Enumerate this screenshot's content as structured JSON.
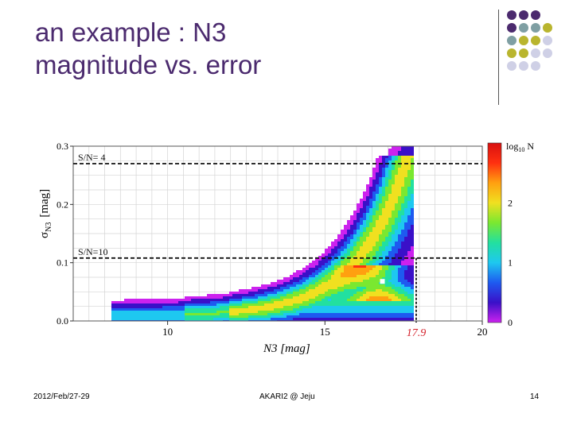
{
  "slide": {
    "title_line1": "an example : N3",
    "title_line2": "magnitude vs. error",
    "footer_left": "2012/Feb/27-29",
    "footer_center": "AKARI2 @ Jeju",
    "footer_right": "14"
  },
  "theme": {
    "title_color": "#4b2a6e",
    "dot_colors": {
      "purple": "#4b2a6e",
      "teal": "#7f9fa3",
      "olive": "#b9b52e",
      "lavender": "#cfd0e6"
    }
  },
  "chart_data": {
    "type": "heatmap",
    "title": "",
    "xlabel": "N3 [mag]",
    "ylabel_main": "σ",
    "ylabel_sub": "N3",
    "ylabel_unit": "[mag]",
    "xlim": [
      7,
      20
    ],
    "ylim": [
      0.0,
      0.3
    ],
    "x_ticks": [
      10,
      15,
      20
    ],
    "x_tick_labels": [
      "10",
      "15",
      "20"
    ],
    "y_ticks": [
      0.0,
      0.1,
      0.2,
      0.3
    ],
    "y_tick_labels": [
      "0.0",
      "0.1",
      "0.2",
      "0.3"
    ],
    "grid": true,
    "reference_lines": [
      {
        "y": 0.27,
        "label": "S/N= 4",
        "style": "dashed"
      },
      {
        "y": 0.108,
        "label": "S/N=10",
        "style": "dashed"
      }
    ],
    "limit_marker": {
      "x": 17.9,
      "label": "17.9",
      "color": "#d4202a"
    },
    "colorbar": {
      "label_main": "log",
      "label_sub": "10",
      "label_tail": " N",
      "range": [
        0,
        3
      ],
      "ticks": [
        0,
        1,
        2
      ],
      "tick_labels": [
        "0",
        "1",
        "2"
      ],
      "colors": [
        "#cc22ee",
        "#3a10c8",
        "#1e5af0",
        "#1ec8f0",
        "#22e0a0",
        "#7ae830",
        "#f0e020",
        "#ffa010",
        "#ff3010",
        "#d81010"
      ]
    }
  }
}
